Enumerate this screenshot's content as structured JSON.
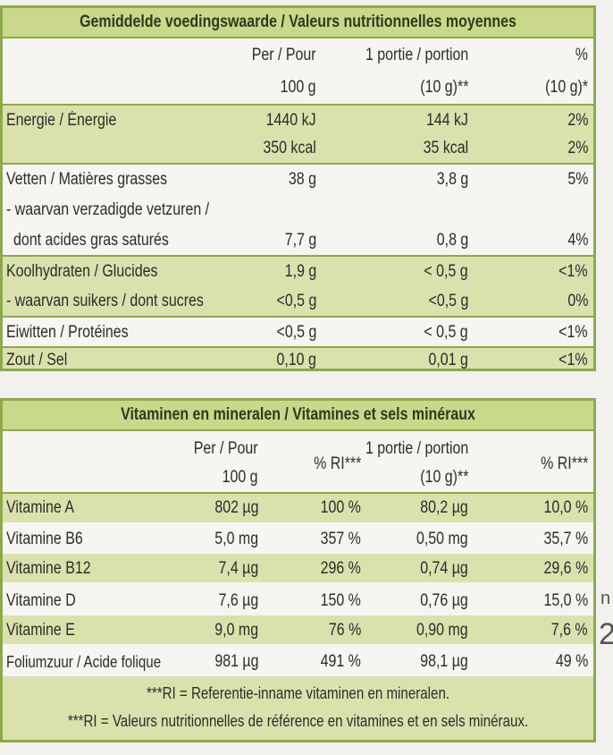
{
  "nutrition": {
    "title": "Gemiddelde voedingswaarde / Valeurs nutritionnelles moyennes",
    "headers": {
      "per100_line1": "Per / Pour",
      "per100_line2": "100 g",
      "portion_line1": "1 portie / portion",
      "portion_line2": "(10 g)**",
      "pct_line1": "%",
      "pct_line2": "(10 g)*"
    },
    "rows": [
      {
        "label": "Energie / Énergie",
        "per100": "1440 kJ",
        "portion": "144 kJ",
        "pct": "2%"
      },
      {
        "label": "",
        "per100": "350 kcal",
        "portion": "35 kcal",
        "pct": "2%"
      },
      {
        "label": "Vetten / Matières grasses",
        "per100": "38 g",
        "portion": "3,8 g",
        "pct": "5%"
      },
      {
        "label": "- waarvan verzadigde vetzuren /",
        "per100": "",
        "portion": "",
        "pct": ""
      },
      {
        "label": "dont acides gras saturés",
        "per100": "7,7 g",
        "portion": "0,8 g",
        "pct": "4%"
      },
      {
        "label": "Koolhydraten / Glucides",
        "per100": "1,9 g",
        "portion": "< 0,5 g",
        "pct": "<1%"
      },
      {
        "label": "- waarvan suikers / dont sucres",
        "per100": "<0,5 g",
        "portion": "<0,5 g",
        "pct": "0%"
      },
      {
        "label": "Eiwitten / Protéines",
        "per100": "<0,5 g",
        "portion": "< 0,5 g",
        "pct": "<1%"
      },
      {
        "label": "Zout / Sel",
        "per100": "0,10 g",
        "portion": "0,01 g",
        "pct": "<1%"
      }
    ]
  },
  "vitamins": {
    "title": "Vitaminen en mineralen / Vitamines et sels minéraux",
    "headers": {
      "per100_line1": "Per / Pour",
      "per100_line2": "100 g",
      "ri1": "% RI***",
      "portion_line1": "1 portie / portion",
      "portion_line2": "(10 g)**",
      "ri2": "% RI***"
    },
    "rows": [
      {
        "label": "Vitamine A",
        "per100": "802 µg",
        "ri100": "100 %",
        "portion": "80,2 µg",
        "riportion": "10,0 %"
      },
      {
        "label": "Vitamine B6",
        "per100": "5,0 mg",
        "ri100": "357 %",
        "portion": "0,50 mg",
        "riportion": "35,7 %"
      },
      {
        "label": "Vitamine B12",
        "per100": "7,4 µg",
        "ri100": "296 %",
        "portion": "0,74 µg",
        "riportion": "29,6 %"
      },
      {
        "label": "Vitamine D",
        "per100": "7,6 µg",
        "ri100": "150 %",
        "portion": "0,76 µg",
        "riportion": "15,0 %"
      },
      {
        "label": "Vitamine E",
        "per100": "9,0 mg",
        "ri100": "76 %",
        "portion": "0,90 mg",
        "riportion": "7,6 %"
      },
      {
        "label": "Foliumzuur / Acide folique",
        "per100": "981 µg",
        "ri100": "491 %",
        "portion": "98,1 µg",
        "riportion": "49 %"
      }
    ],
    "footnote1": "***RI = Referentie-inname vitaminen en mineralen.",
    "footnote2": "***RI = Valeurs nutritionnelles de référence en vitamines et en sels minéraux."
  },
  "edge_text": {
    "right_1": "n",
    "right_2": "2"
  },
  "colors": {
    "border_green": "#8fa94a",
    "header_green": "#c9d88a",
    "row_green": "#d9e2ad"
  }
}
